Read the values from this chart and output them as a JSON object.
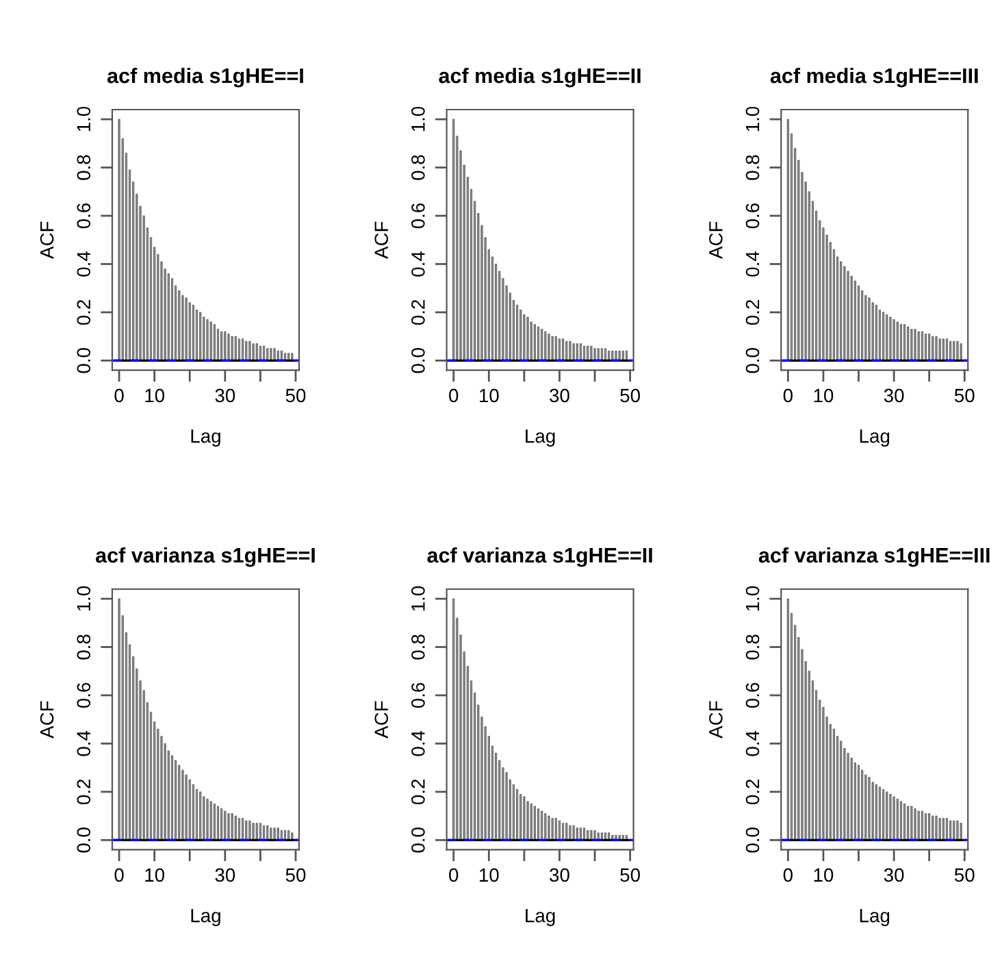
{
  "chart_data": [
    {
      "type": "bar",
      "title": "acf media s1gHE==I",
      "xlabel": "Lag",
      "ylabel": "ACF",
      "color": "#8c8c8c",
      "x": [
        0,
        1,
        2,
        3,
        4,
        5,
        6,
        7,
        8,
        9,
        10,
        11,
        12,
        13,
        14,
        15,
        16,
        17,
        18,
        19,
        20,
        21,
        22,
        23,
        24,
        25,
        26,
        27,
        28,
        29,
        30,
        31,
        32,
        33,
        34,
        35,
        36,
        37,
        38,
        39,
        40,
        41,
        42,
        43,
        44,
        45,
        46,
        47,
        48,
        49
      ],
      "values": [
        1.0,
        0.92,
        0.86,
        0.79,
        0.74,
        0.69,
        0.64,
        0.6,
        0.55,
        0.51,
        0.47,
        0.44,
        0.41,
        0.38,
        0.36,
        0.34,
        0.31,
        0.29,
        0.27,
        0.26,
        0.24,
        0.23,
        0.21,
        0.2,
        0.18,
        0.17,
        0.16,
        0.15,
        0.13,
        0.12,
        0.12,
        0.11,
        0.1,
        0.1,
        0.09,
        0.09,
        0.08,
        0.08,
        0.07,
        0.07,
        0.06,
        0.06,
        0.05,
        0.05,
        0.05,
        0.04,
        0.04,
        0.03,
        0.03,
        0.03
      ],
      "xlim": [
        -1.96,
        50.96
      ],
      "ylim": [
        -0.04,
        1.04
      ],
      "xticks": [
        0,
        10,
        30,
        50
      ],
      "yticks": [
        {
          "value": 0,
          "label": "0.0"
        },
        {
          "value": 0.2,
          "label": "0.2"
        },
        {
          "value": 0.4,
          "label": "0.4"
        },
        {
          "value": 0.6,
          "label": "0.6"
        },
        {
          "value": 0.8,
          "label": "0.8"
        },
        {
          "value": 1,
          "label": "1.0"
        }
      ],
      "ref_lines": [
        {
          "axis": "y",
          "value": 0,
          "color": "#000000",
          "line_style": "solid"
        },
        {
          "axis": "y",
          "value": 0,
          "color": "#0000ff",
          "line_style": "dashed"
        }
      ]
    },
    {
      "type": "bar",
      "title": "acf media s1gHE==II",
      "xlabel": "Lag",
      "ylabel": "ACF",
      "color": "#8c8c8c",
      "x": [
        0,
        1,
        2,
        3,
        4,
        5,
        6,
        7,
        8,
        9,
        10,
        11,
        12,
        13,
        14,
        15,
        16,
        17,
        18,
        19,
        20,
        21,
        22,
        23,
        24,
        25,
        26,
        27,
        28,
        29,
        30,
        31,
        32,
        33,
        34,
        35,
        36,
        37,
        38,
        39,
        40,
        41,
        42,
        43,
        44,
        45,
        46,
        47,
        48,
        49
      ],
      "values": [
        1.0,
        0.93,
        0.87,
        0.81,
        0.76,
        0.71,
        0.66,
        0.61,
        0.56,
        0.51,
        0.46,
        0.43,
        0.4,
        0.37,
        0.34,
        0.31,
        0.28,
        0.25,
        0.23,
        0.21,
        0.19,
        0.18,
        0.16,
        0.15,
        0.14,
        0.13,
        0.12,
        0.11,
        0.1,
        0.1,
        0.09,
        0.09,
        0.08,
        0.08,
        0.07,
        0.07,
        0.07,
        0.06,
        0.06,
        0.06,
        0.05,
        0.05,
        0.05,
        0.05,
        0.04,
        0.04,
        0.04,
        0.04,
        0.04,
        0.04
      ],
      "xlim": [
        -1.96,
        50.96
      ],
      "ylim": [
        -0.04,
        1.04
      ],
      "xticks": [
        0,
        10,
        30,
        50
      ],
      "yticks": [
        {
          "value": 0,
          "label": "0.0"
        },
        {
          "value": 0.2,
          "label": "0.2"
        },
        {
          "value": 0.4,
          "label": "0.4"
        },
        {
          "value": 0.6,
          "label": "0.6"
        },
        {
          "value": 0.8,
          "label": "0.8"
        },
        {
          "value": 1,
          "label": "1.0"
        }
      ],
      "ref_lines": [
        {
          "axis": "y",
          "value": 0,
          "color": "#000000",
          "line_style": "solid"
        },
        {
          "axis": "y",
          "value": 0,
          "color": "#0000ff",
          "line_style": "dashed"
        }
      ]
    },
    {
      "type": "bar",
      "title": "acf media s1gHE==III",
      "xlabel": "Lag",
      "ylabel": "ACF",
      "color": "#8c8c8c",
      "x": [
        0,
        1,
        2,
        3,
        4,
        5,
        6,
        7,
        8,
        9,
        10,
        11,
        12,
        13,
        14,
        15,
        16,
        17,
        18,
        19,
        20,
        21,
        22,
        23,
        24,
        25,
        26,
        27,
        28,
        29,
        30,
        31,
        32,
        33,
        34,
        35,
        36,
        37,
        38,
        39,
        40,
        41,
        42,
        43,
        44,
        45,
        46,
        47,
        48,
        49
      ],
      "values": [
        1.0,
        0.94,
        0.88,
        0.83,
        0.78,
        0.74,
        0.7,
        0.66,
        0.62,
        0.58,
        0.55,
        0.52,
        0.49,
        0.46,
        0.43,
        0.41,
        0.39,
        0.37,
        0.35,
        0.33,
        0.31,
        0.29,
        0.27,
        0.26,
        0.24,
        0.23,
        0.21,
        0.2,
        0.19,
        0.18,
        0.17,
        0.16,
        0.15,
        0.15,
        0.14,
        0.13,
        0.13,
        0.12,
        0.12,
        0.11,
        0.11,
        0.1,
        0.1,
        0.09,
        0.09,
        0.09,
        0.08,
        0.08,
        0.08,
        0.07
      ],
      "xlim": [
        -1.96,
        50.96
      ],
      "ylim": [
        -0.04,
        1.04
      ],
      "xticks": [
        0,
        10,
        30,
        50
      ],
      "yticks": [
        {
          "value": 0,
          "label": "0.0"
        },
        {
          "value": 0.2,
          "label": "0.2"
        },
        {
          "value": 0.4,
          "label": "0.4"
        },
        {
          "value": 0.6,
          "label": "0.6"
        },
        {
          "value": 0.8,
          "label": "0.8"
        },
        {
          "value": 1,
          "label": "1.0"
        }
      ],
      "ref_lines": [
        {
          "axis": "y",
          "value": 0,
          "color": "#000000",
          "line_style": "solid"
        },
        {
          "axis": "y",
          "value": 0,
          "color": "#0000ff",
          "line_style": "dashed"
        }
      ]
    },
    {
      "type": "bar",
      "title": "acf varianza s1gHE==I",
      "xlabel": "Lag",
      "ylabel": "ACF",
      "color": "#8c8c8c",
      "x": [
        0,
        1,
        2,
        3,
        4,
        5,
        6,
        7,
        8,
        9,
        10,
        11,
        12,
        13,
        14,
        15,
        16,
        17,
        18,
        19,
        20,
        21,
        22,
        23,
        24,
        25,
        26,
        27,
        28,
        29,
        30,
        31,
        32,
        33,
        34,
        35,
        36,
        37,
        38,
        39,
        40,
        41,
        42,
        43,
        44,
        45,
        46,
        47,
        48,
        49
      ],
      "values": [
        1.0,
        0.93,
        0.86,
        0.81,
        0.76,
        0.71,
        0.66,
        0.62,
        0.57,
        0.53,
        0.49,
        0.46,
        0.43,
        0.4,
        0.37,
        0.35,
        0.33,
        0.31,
        0.29,
        0.27,
        0.25,
        0.23,
        0.21,
        0.2,
        0.18,
        0.17,
        0.16,
        0.15,
        0.14,
        0.13,
        0.12,
        0.11,
        0.11,
        0.1,
        0.09,
        0.09,
        0.08,
        0.08,
        0.07,
        0.07,
        0.07,
        0.06,
        0.06,
        0.05,
        0.05,
        0.05,
        0.04,
        0.04,
        0.04,
        0.03
      ],
      "xlim": [
        -1.96,
        50.96
      ],
      "ylim": [
        -0.04,
        1.04
      ],
      "xticks": [
        0,
        10,
        30,
        50
      ],
      "yticks": [
        {
          "value": 0,
          "label": "0.0"
        },
        {
          "value": 0.2,
          "label": "0.2"
        },
        {
          "value": 0.4,
          "label": "0.4"
        },
        {
          "value": 0.6,
          "label": "0.6"
        },
        {
          "value": 0.8,
          "label": "0.8"
        },
        {
          "value": 1,
          "label": "1.0"
        }
      ],
      "ref_lines": [
        {
          "axis": "y",
          "value": 0,
          "color": "#000000",
          "line_style": "solid"
        },
        {
          "axis": "y",
          "value": 0,
          "color": "#0000ff",
          "line_style": "dashed"
        }
      ]
    },
    {
      "type": "bar",
      "title": "acf varianza s1gHE==II",
      "xlabel": "Lag",
      "ylabel": "ACF",
      "color": "#8c8c8c",
      "x": [
        0,
        1,
        2,
        3,
        4,
        5,
        6,
        7,
        8,
        9,
        10,
        11,
        12,
        13,
        14,
        15,
        16,
        17,
        18,
        19,
        20,
        21,
        22,
        23,
        24,
        25,
        26,
        27,
        28,
        29,
        30,
        31,
        32,
        33,
        34,
        35,
        36,
        37,
        38,
        39,
        40,
        41,
        42,
        43,
        44,
        45,
        46,
        47,
        48,
        49
      ],
      "values": [
        1.0,
        0.92,
        0.85,
        0.78,
        0.72,
        0.66,
        0.61,
        0.56,
        0.51,
        0.47,
        0.43,
        0.39,
        0.36,
        0.33,
        0.3,
        0.28,
        0.25,
        0.23,
        0.21,
        0.19,
        0.18,
        0.16,
        0.15,
        0.14,
        0.13,
        0.12,
        0.11,
        0.1,
        0.09,
        0.09,
        0.08,
        0.07,
        0.07,
        0.06,
        0.06,
        0.05,
        0.05,
        0.05,
        0.04,
        0.04,
        0.04,
        0.03,
        0.03,
        0.03,
        0.03,
        0.02,
        0.02,
        0.02,
        0.02,
        0.02
      ],
      "xlim": [
        -1.96,
        50.96
      ],
      "ylim": [
        -0.04,
        1.04
      ],
      "xticks": [
        0,
        10,
        30,
        50
      ],
      "yticks": [
        {
          "value": 0,
          "label": "0.0"
        },
        {
          "value": 0.2,
          "label": "0.2"
        },
        {
          "value": 0.4,
          "label": "0.4"
        },
        {
          "value": 0.6,
          "label": "0.6"
        },
        {
          "value": 0.8,
          "label": "0.8"
        },
        {
          "value": 1,
          "label": "1.0"
        }
      ],
      "ref_lines": [
        {
          "axis": "y",
          "value": 0,
          "color": "#000000",
          "line_style": "solid"
        },
        {
          "axis": "y",
          "value": 0,
          "color": "#0000ff",
          "line_style": "dashed"
        }
      ]
    },
    {
      "type": "bar",
      "title": "acf varianza s1gHE==III",
      "xlabel": "Lag",
      "ylabel": "ACF",
      "color": "#8c8c8c",
      "x": [
        0,
        1,
        2,
        3,
        4,
        5,
        6,
        7,
        8,
        9,
        10,
        11,
        12,
        13,
        14,
        15,
        16,
        17,
        18,
        19,
        20,
        21,
        22,
        23,
        24,
        25,
        26,
        27,
        28,
        29,
        30,
        31,
        32,
        33,
        34,
        35,
        36,
        37,
        38,
        39,
        40,
        41,
        42,
        43,
        44,
        45,
        46,
        47,
        48,
        49
      ],
      "values": [
        1.0,
        0.94,
        0.89,
        0.84,
        0.79,
        0.74,
        0.7,
        0.66,
        0.62,
        0.58,
        0.55,
        0.51,
        0.48,
        0.46,
        0.43,
        0.41,
        0.38,
        0.36,
        0.34,
        0.32,
        0.31,
        0.29,
        0.27,
        0.26,
        0.24,
        0.23,
        0.22,
        0.21,
        0.2,
        0.19,
        0.18,
        0.17,
        0.16,
        0.15,
        0.14,
        0.14,
        0.13,
        0.12,
        0.12,
        0.11,
        0.11,
        0.1,
        0.1,
        0.09,
        0.09,
        0.09,
        0.08,
        0.08,
        0.08,
        0.07
      ],
      "xlim": [
        -1.96,
        50.96
      ],
      "ylim": [
        -0.04,
        1.04
      ],
      "xticks": [
        0,
        10,
        30,
        50
      ],
      "yticks": [
        {
          "value": 0,
          "label": "0.0"
        },
        {
          "value": 0.2,
          "label": "0.2"
        },
        {
          "value": 0.4,
          "label": "0.4"
        },
        {
          "value": 0.6,
          "label": "0.6"
        },
        {
          "value": 0.8,
          "label": "0.8"
        },
        {
          "value": 1,
          "label": "1.0"
        }
      ],
      "ref_lines": [
        {
          "axis": "y",
          "value": 0,
          "color": "#000000",
          "line_style": "solid"
        },
        {
          "axis": "y",
          "value": 0,
          "color": "#0000ff",
          "line_style": "dashed"
        }
      ]
    }
  ]
}
